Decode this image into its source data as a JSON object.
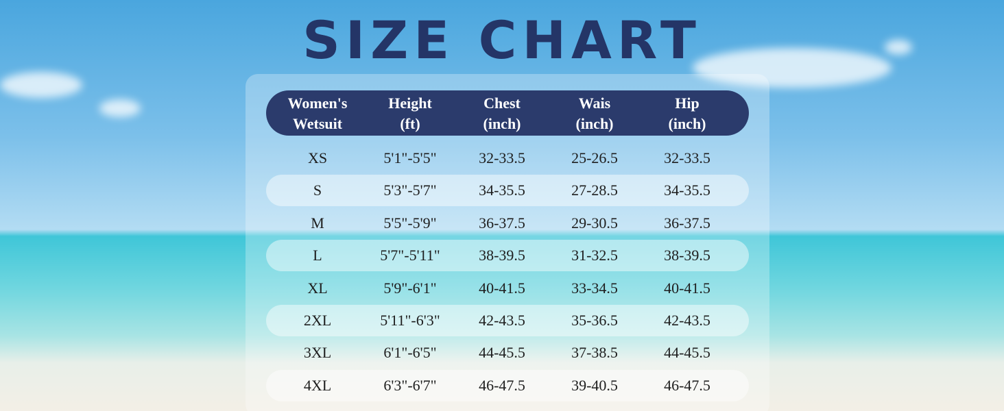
{
  "title": "SIZE CHART",
  "table": {
    "headers": [
      [
        "Women's",
        "Wetsuit"
      ],
      [
        "Height",
        "(ft)"
      ],
      [
        "Chest",
        "(inch)"
      ],
      [
        "Wais",
        "(inch)"
      ],
      [
        "Hip",
        "(inch)"
      ]
    ],
    "rows": [
      [
        "XS",
        "5'1\"-5'5\"",
        "32-33.5",
        "25-26.5",
        "32-33.5"
      ],
      [
        "S",
        "5'3\"-5'7\"",
        "34-35.5",
        "27-28.5",
        "34-35.5"
      ],
      [
        "M",
        "5'5\"-5'9\"",
        "36-37.5",
        "29-30.5",
        "36-37.5"
      ],
      [
        "L",
        "5'7\"-5'11\"",
        "38-39.5",
        "31-32.5",
        "38-39.5"
      ],
      [
        "XL",
        "5'9\"-6'1\"",
        "40-41.5",
        "33-34.5",
        "40-41.5"
      ],
      [
        "2XL",
        "5'11\"-6'3\"",
        "42-43.5",
        "35-36.5",
        "42-43.5"
      ],
      [
        "3XL",
        "6'1\"-6'5\"",
        "44-45.5",
        "37-38.5",
        "44-45.5"
      ],
      [
        "4XL",
        "6'3\"-6'7\"",
        "46-47.5",
        "39-40.5",
        "46-47.5"
      ]
    ]
  }
}
